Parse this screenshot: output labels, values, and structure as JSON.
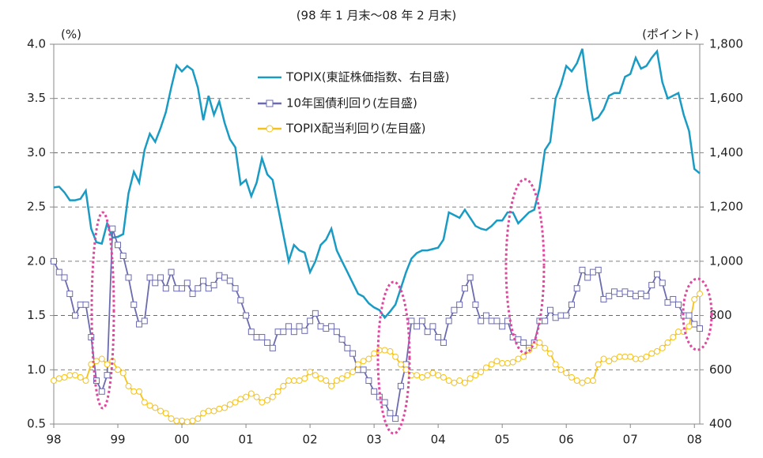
{
  "chart_data": {
    "type": "line",
    "subtitle": "(98 年 1 月末～08 年 2 月末)",
    "ylabel": "(%)",
    "y2label": "(ポイント)",
    "categories": [
      "98",
      null,
      null,
      null,
      null,
      null,
      null,
      null,
      null,
      null,
      null,
      null,
      "99",
      null,
      null,
      null,
      null,
      null,
      null,
      null,
      null,
      null,
      null,
      null,
      "00",
      null,
      null,
      null,
      null,
      null,
      null,
      null,
      null,
      null,
      null,
      null,
      "01",
      null,
      null,
      null,
      null,
      null,
      null,
      null,
      null,
      null,
      null,
      null,
      "02",
      null,
      null,
      null,
      null,
      null,
      null,
      null,
      null,
      null,
      null,
      null,
      "03",
      null,
      null,
      null,
      null,
      null,
      null,
      null,
      null,
      null,
      null,
      null,
      "04",
      null,
      null,
      null,
      null,
      null,
      null,
      null,
      null,
      null,
      null,
      null,
      "05",
      null,
      null,
      null,
      null,
      null,
      null,
      null,
      null,
      null,
      null,
      null,
      "06",
      null,
      null,
      null,
      null,
      null,
      null,
      null,
      null,
      null,
      null,
      null,
      "07",
      null,
      null,
      null,
      null,
      null,
      null,
      null,
      null,
      null,
      null,
      null,
      "08",
      null
    ],
    "series": [
      {
        "name": "TOPIX(東証株価指数、右目盛)",
        "color": "#1a9bc4",
        "axis": "y2",
        "marker": "none",
        "values": [
          1272,
          1275,
          1254,
          1225,
          1225,
          1230,
          1260,
          1120,
          1070,
          1065,
          1140,
          1087,
          1090,
          1100,
          1250,
          1330,
          1290,
          1410,
          1470,
          1440,
          1490,
          1550,
          1640,
          1722,
          1700,
          1720,
          1705,
          1640,
          1520,
          1610,
          1540,
          1590,
          1510,
          1450,
          1420,
          1283,
          1300,
          1240,
          1290,
          1380,
          1320,
          1300,
          1200,
          1100,
          1000,
          1060,
          1040,
          1032,
          960,
          1000,
          1060,
          1080,
          1120,
          1040,
          1000,
          960,
          920,
          880,
          870,
          845,
          830,
          820,
          792,
          815,
          840,
          900,
          960,
          1010,
          1030,
          1040,
          1040,
          1045,
          1050,
          1080,
          1180,
          1170,
          1160,
          1190,
          1160,
          1130,
          1120,
          1115,
          1130,
          1150,
          1150,
          1180,
          1180,
          1140,
          1160,
          1180,
          1190,
          1270,
          1410,
          1440,
          1600,
          1650,
          1720,
          1700,
          1730,
          1783,
          1630,
          1520,
          1530,
          1560,
          1610,
          1620,
          1620,
          1680,
          1690,
          1750,
          1710,
          1720,
          1750,
          1774,
          1660,
          1600,
          1610,
          1620,
          1540,
          1480,
          1340,
          1324
        ]
      },
      {
        "name": "10年国債利回り(左目盛)",
        "color": "#6b6bb0",
        "marker": "square",
        "values": [
          2.0,
          1.9,
          1.85,
          1.7,
          1.5,
          1.6,
          1.6,
          1.3,
          0.9,
          0.8,
          0.95,
          2.3,
          2.15,
          2.05,
          1.85,
          1.6,
          1.42,
          1.45,
          1.85,
          1.8,
          1.85,
          1.75,
          1.9,
          1.75,
          1.75,
          1.8,
          1.7,
          1.75,
          1.82,
          1.75,
          1.78,
          1.87,
          1.85,
          1.82,
          1.75,
          1.64,
          1.5,
          1.35,
          1.3,
          1.3,
          1.25,
          1.2,
          1.35,
          1.35,
          1.4,
          1.35,
          1.4,
          1.36,
          1.45,
          1.52,
          1.4,
          1.38,
          1.4,
          1.35,
          1.28,
          1.2,
          1.15,
          1.0,
          1.0,
          0.9,
          0.8,
          0.75,
          0.7,
          0.6,
          0.55,
          0.85,
          1.05,
          1.45,
          1.4,
          1.45,
          1.35,
          1.4,
          1.3,
          1.25,
          1.45,
          1.55,
          1.6,
          1.75,
          1.85,
          1.6,
          1.45,
          1.5,
          1.45,
          1.45,
          1.4,
          1.45,
          1.3,
          1.28,
          1.25,
          1.2,
          1.25,
          1.45,
          1.45,
          1.55,
          1.48,
          1.5,
          1.5,
          1.6,
          1.75,
          1.92,
          1.85,
          1.9,
          1.92,
          1.65,
          1.68,
          1.72,
          1.7,
          1.72,
          1.7,
          1.68,
          1.7,
          1.68,
          1.78,
          1.88,
          1.8,
          1.62,
          1.65,
          1.6,
          1.5,
          1.5,
          1.42,
          1.38
        ]
      },
      {
        "name": "TOPIX配当利回り(左目盛)",
        "color": "#f5c21b",
        "marker": "circle",
        "values": [
          0.9,
          0.92,
          0.93,
          0.95,
          0.95,
          0.93,
          0.9,
          1.05,
          1.08,
          1.1,
          1.05,
          1.08,
          1.0,
          0.97,
          0.85,
          0.8,
          0.8,
          0.7,
          0.67,
          0.65,
          0.62,
          0.6,
          0.55,
          0.53,
          0.53,
          0.52,
          0.53,
          0.55,
          0.6,
          0.62,
          0.62,
          0.64,
          0.65,
          0.68,
          0.7,
          0.73,
          0.75,
          0.78,
          0.75,
          0.7,
          0.72,
          0.75,
          0.8,
          0.85,
          0.9,
          0.9,
          0.9,
          0.92,
          0.98,
          0.95,
          0.92,
          0.9,
          0.85,
          0.9,
          0.92,
          0.95,
          0.98,
          1.05,
          1.08,
          1.1,
          1.15,
          1.18,
          1.18,
          1.17,
          1.12,
          1.05,
          1.0,
          0.95,
          0.95,
          0.93,
          0.95,
          0.97,
          0.95,
          0.93,
          0.9,
          0.88,
          0.9,
          0.88,
          0.92,
          0.95,
          0.98,
          1.02,
          1.05,
          1.08,
          1.06,
          1.06,
          1.07,
          1.1,
          1.12,
          1.18,
          1.22,
          1.25,
          1.2,
          1.15,
          1.05,
          1.0,
          0.97,
          0.93,
          0.9,
          0.88,
          0.9,
          0.9,
          1.05,
          1.1,
          1.08,
          1.1,
          1.12,
          1.12,
          1.12,
          1.1,
          1.1,
          1.12,
          1.15,
          1.17,
          1.2,
          1.25,
          1.3,
          1.35,
          1.35,
          1.4,
          1.65,
          1.7
        ]
      }
    ],
    "ylim": [
      0.5,
      4.0
    ],
    "yticks": [
      0.5,
      {
        "value": 1,
        "label": "1.0"
      },
      1.5,
      {
        "value": 2,
        "label": "2.0"
      },
      2.5,
      {
        "value": 3,
        "label": "3.0"
      },
      3.5,
      {
        "value": 4,
        "label": "4.0"
      }
    ],
    "y2lim": [
      400,
      1800
    ],
    "y2ticks": [
      400,
      600,
      800,
      {
        "value": 1000,
        "label": "1,000"
      },
      {
        "value": 1200,
        "label": "1,200"
      },
      {
        "value": 1400,
        "label": "1,400"
      },
      {
        "value": 1600,
        "label": "1,600"
      },
      {
        "value": 1800,
        "label": "1,800"
      }
    ],
    "grid": true
  }
}
